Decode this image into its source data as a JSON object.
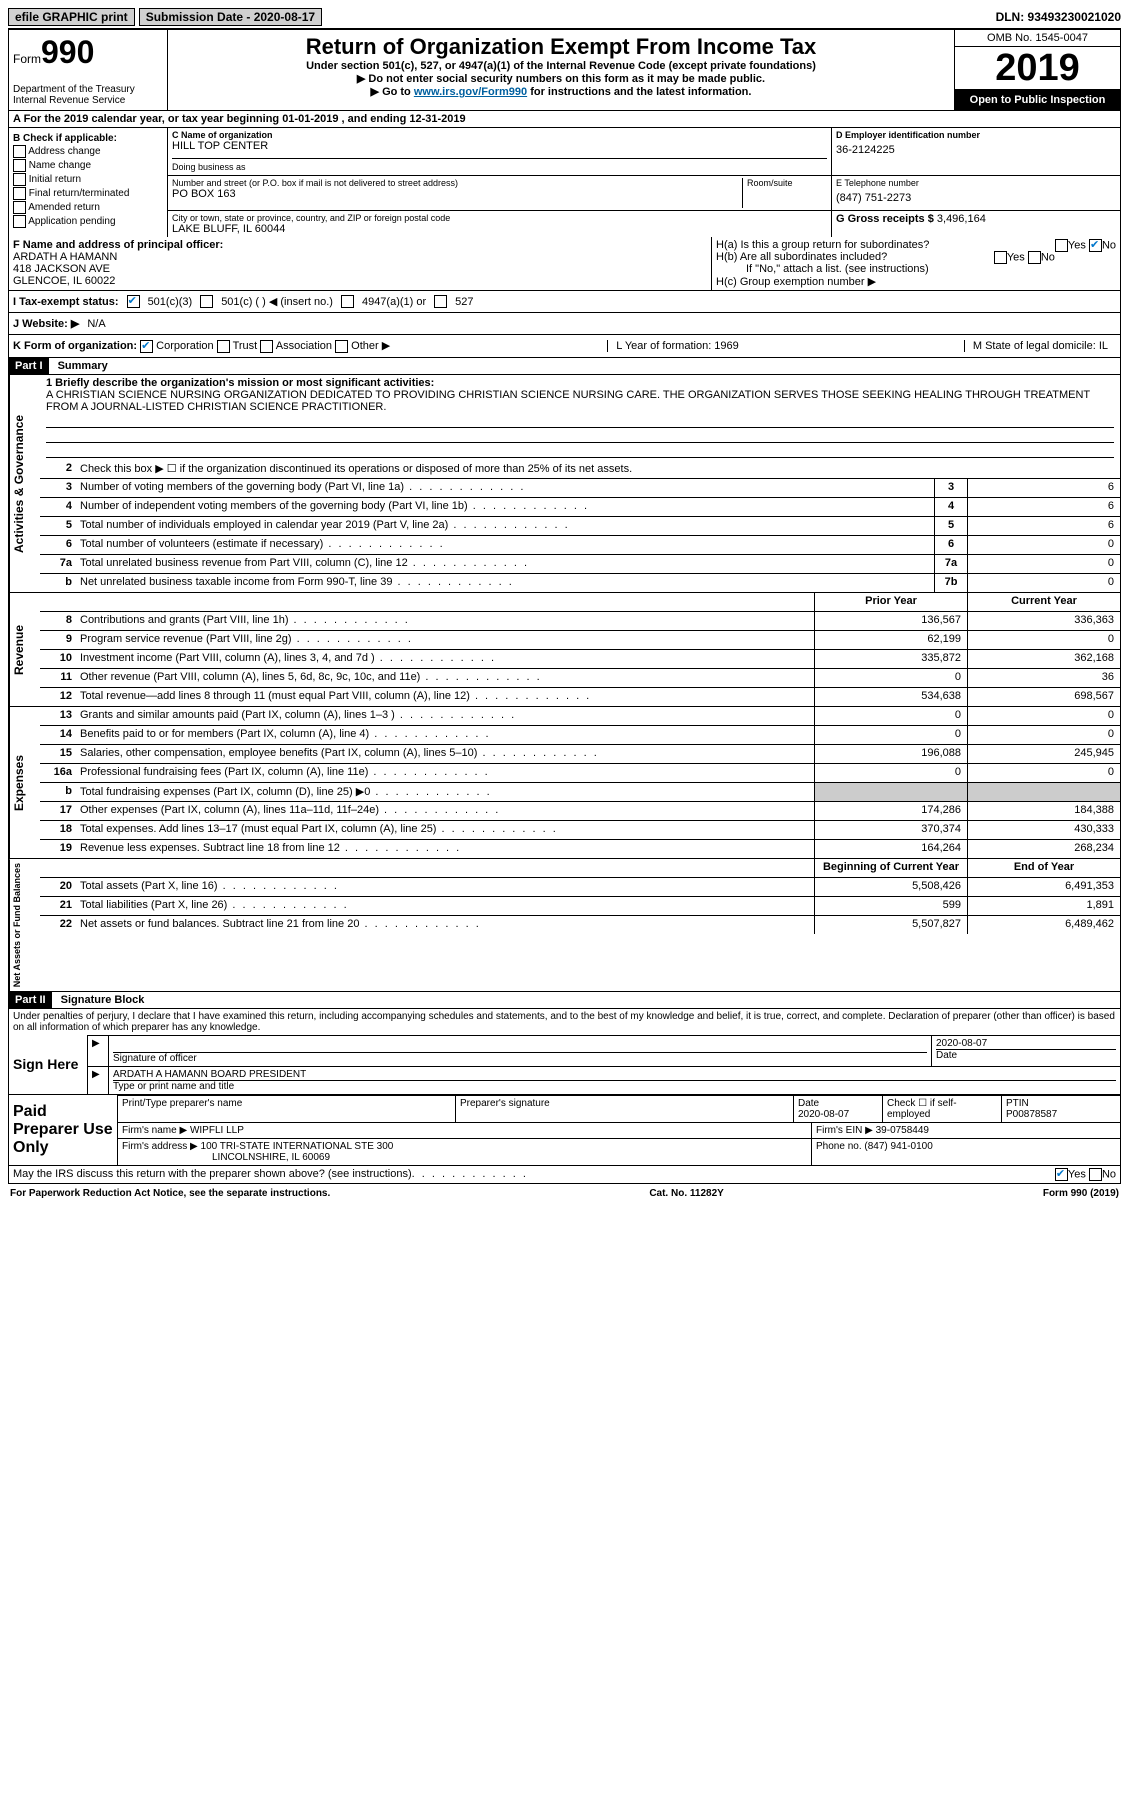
{
  "topbar": {
    "efile": "efile GRAPHIC print",
    "sub_label": "Submission Date - 2020-08-17",
    "dln": "DLN: 93493230021020"
  },
  "header": {
    "form_label": "Form",
    "form_num": "990",
    "dept": "Department of the Treasury\nInternal Revenue Service",
    "title": "Return of Organization Exempt From Income Tax",
    "sub1": "Under section 501(c), 527, or 4947(a)(1) of the Internal Revenue Code (except private foundations)",
    "sub2": "▶ Do not enter social security numbers on this form as it may be made public.",
    "sub3_pre": "▶ Go to ",
    "sub3_link": "www.irs.gov/Form990",
    "sub3_post": " for instructions and the latest information.",
    "omb": "OMB No. 1545-0047",
    "year": "2019",
    "openpub": "Open to Public Inspection"
  },
  "rowA": "A For the 2019 calendar year, or tax year beginning 01-01-2019   , and ending 12-31-2019",
  "B": {
    "title": "B Check if applicable:",
    "items": [
      "Address change",
      "Name change",
      "Initial return",
      "Final return/terminated",
      "Amended return",
      "Application pending"
    ]
  },
  "C": {
    "name_lbl": "C Name of organization",
    "name": "HILL TOP CENTER",
    "dba_lbl": "Doing business as",
    "dba": "",
    "street_lbl": "Number and street (or P.O. box if mail is not delivered to street address)",
    "room_lbl": "Room/suite",
    "street": "PO BOX 163",
    "city_lbl": "City or town, state or province, country, and ZIP or foreign postal code",
    "city": "LAKE BLUFF, IL  60044"
  },
  "D": {
    "lbl": "D Employer identification number",
    "val": "36-2124225"
  },
  "E": {
    "lbl": "E Telephone number",
    "val": "(847) 751-2273"
  },
  "G": {
    "lbl": "G Gross receipts $",
    "val": "3,496,164"
  },
  "F": {
    "lbl": "F  Name and address of principal officer:",
    "name": "ARDATH A HAMANN",
    "addr1": "418 JACKSON AVE",
    "addr2": "GLENCOE, IL  60022"
  },
  "H": {
    "a": "H(a)  Is this a group return for subordinates?",
    "b": "H(b)  Are all subordinates included?",
    "b_note": "If \"No,\" attach a list. (see instructions)",
    "c": "H(c)  Group exemption number ▶"
  },
  "I": {
    "lbl": "I   Tax-exempt status:",
    "opts": [
      "501(c)(3)",
      "501(c) (  ) ◀ (insert no.)",
      "4947(a)(1) or",
      "527"
    ]
  },
  "J": {
    "lbl": "J   Website: ▶",
    "val": "N/A"
  },
  "K": {
    "lbl": "K Form of organization:",
    "opts": [
      "Corporation",
      "Trust",
      "Association",
      "Other ▶"
    ],
    "L": "L Year of formation: 1969",
    "M": "M State of legal domicile: IL"
  },
  "part1": {
    "hdr": "Part I",
    "title": "Summary",
    "q1_lbl": "1  Briefly describe the organization's mission or most significant activities:",
    "q1_val": "A CHRISTIAN SCIENCE NURSING ORGANIZATION DEDICATED TO PROVIDING CHRISTIAN SCIENCE NURSING CARE. THE ORGANIZATION SERVES THOSE SEEKING HEALING THROUGH TREATMENT FROM A JOURNAL-LISTED CHRISTIAN SCIENCE PRACTITIONER.",
    "q2": "Check this box ▶ ☐ if the organization discontinued its operations or disposed of more than 25% of its net assets.",
    "lines_gov": [
      {
        "n": "3",
        "d": "Number of voting members of the governing body (Part VI, line 1a)",
        "box": "3",
        "v": "6"
      },
      {
        "n": "4",
        "d": "Number of independent voting members of the governing body (Part VI, line 1b)",
        "box": "4",
        "v": "6"
      },
      {
        "n": "5",
        "d": "Total number of individuals employed in calendar year 2019 (Part V, line 2a)",
        "box": "5",
        "v": "6"
      },
      {
        "n": "6",
        "d": "Total number of volunteers (estimate if necessary)",
        "box": "6",
        "v": "0"
      },
      {
        "n": "7a",
        "d": "Total unrelated business revenue from Part VIII, column (C), line 12",
        "box": "7a",
        "v": "0"
      },
      {
        "n": "b",
        "d": "Net unrelated business taxable income from Form 990-T, line 39",
        "box": "7b",
        "v": "0"
      }
    ],
    "col_prior": "Prior Year",
    "col_curr": "Current Year",
    "lines_rev": [
      {
        "n": "8",
        "d": "Contributions and grants (Part VIII, line 1h)",
        "p": "136,567",
        "c": "336,363"
      },
      {
        "n": "9",
        "d": "Program service revenue (Part VIII, line 2g)",
        "p": "62,199",
        "c": "0"
      },
      {
        "n": "10",
        "d": "Investment income (Part VIII, column (A), lines 3, 4, and 7d )",
        "p": "335,872",
        "c": "362,168"
      },
      {
        "n": "11",
        "d": "Other revenue (Part VIII, column (A), lines 5, 6d, 8c, 9c, 10c, and 11e)",
        "p": "0",
        "c": "36"
      },
      {
        "n": "12",
        "d": "Total revenue—add lines 8 through 11 (must equal Part VIII, column (A), line 12)",
        "p": "534,638",
        "c": "698,567"
      }
    ],
    "lines_exp": [
      {
        "n": "13",
        "d": "Grants and similar amounts paid (Part IX, column (A), lines 1–3 )",
        "p": "0",
        "c": "0"
      },
      {
        "n": "14",
        "d": "Benefits paid to or for members (Part IX, column (A), line 4)",
        "p": "0",
        "c": "0"
      },
      {
        "n": "15",
        "d": "Salaries, other compensation, employee benefits (Part IX, column (A), lines 5–10)",
        "p": "196,088",
        "c": "245,945"
      },
      {
        "n": "16a",
        "d": "Professional fundraising fees (Part IX, column (A), line 11e)",
        "p": "0",
        "c": "0"
      },
      {
        "n": "b",
        "d": "Total fundraising expenses (Part IX, column (D), line 25) ▶0",
        "p": "grey",
        "c": "grey"
      },
      {
        "n": "17",
        "d": "Other expenses (Part IX, column (A), lines 11a–11d, 11f–24e)",
        "p": "174,286",
        "c": "184,388"
      },
      {
        "n": "18",
        "d": "Total expenses. Add lines 13–17 (must equal Part IX, column (A), line 25)",
        "p": "370,374",
        "c": "430,333"
      },
      {
        "n": "19",
        "d": "Revenue less expenses. Subtract line 18 from line 12",
        "p": "164,264",
        "c": "268,234"
      }
    ],
    "col_beg": "Beginning of Current Year",
    "col_end": "End of Year",
    "lines_net": [
      {
        "n": "20",
        "d": "Total assets (Part X, line 16)",
        "p": "5,508,426",
        "c": "6,491,353"
      },
      {
        "n": "21",
        "d": "Total liabilities (Part X, line 26)",
        "p": "599",
        "c": "1,891"
      },
      {
        "n": "22",
        "d": "Net assets or fund balances. Subtract line 21 from line 20",
        "p": "5,507,827",
        "c": "6,489,462"
      }
    ],
    "tabs": [
      "Activities & Governance",
      "Revenue",
      "Expenses",
      "Net Assets or Fund Balances"
    ]
  },
  "part2": {
    "hdr": "Part II",
    "title": "Signature Block",
    "decl": "Under penalties of perjury, I declare that I have examined this return, including accompanying schedules and statements, and to the best of my knowledge and belief, it is true, correct, and complete. Declaration of preparer (other than officer) is based on all information of which preparer has any knowledge.",
    "sign_here": "Sign Here",
    "sig_officer_lbl": "Signature of officer",
    "sig_date": "2020-08-07",
    "date_lbl": "Date",
    "officer_name": "ARDATH A HAMANN  BOARD PRESIDENT",
    "officer_name_lbl": "Type or print name and title",
    "paid": "Paid Preparer Use Only",
    "prep_name_lbl": "Print/Type preparer's name",
    "prep_sig_lbl": "Preparer's signature",
    "prep_date": "2020-08-07",
    "check_self": "Check ☐ if self-employed",
    "ptin_lbl": "PTIN",
    "ptin": "P00878587",
    "firm_name_lbl": "Firm's name   ▶",
    "firm_name": "WIPFLI LLP",
    "firm_ein_lbl": "Firm's EIN ▶",
    "firm_ein": "39-0758449",
    "firm_addr_lbl": "Firm's address ▶",
    "firm_addr1": "100 TRI-STATE INTERNATIONAL STE 300",
    "firm_addr2": "LINCOLNSHIRE, IL  60069",
    "phone_lbl": "Phone no.",
    "phone": "(847) 941-0100",
    "discuss": "May the IRS discuss this return with the preparer shown above? (see instructions)"
  },
  "footer": {
    "left": "For Paperwork Reduction Act Notice, see the separate instructions.",
    "mid": "Cat. No. 11282Y",
    "right": "Form 990 (2019)"
  }
}
